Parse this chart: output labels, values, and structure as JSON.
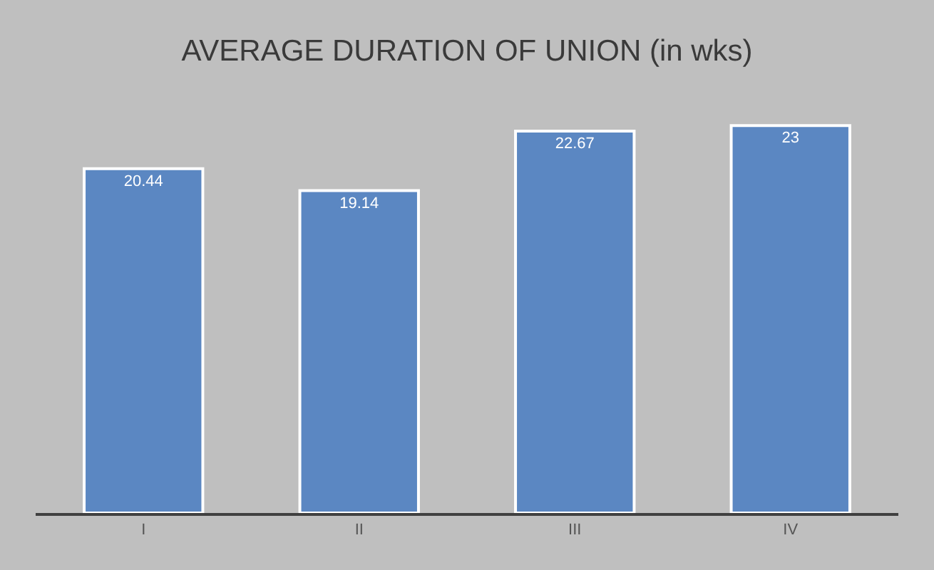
{
  "chart_data": {
    "type": "bar",
    "title": "AVERAGE DURATION OF UNION (in wks)",
    "categories": [
      "I",
      "II",
      "III",
      "IV"
    ],
    "values": [
      20.44,
      19.14,
      22.67,
      23
    ],
    "color": "#5b87c2",
    "data_labels": true,
    "grid": false
  }
}
